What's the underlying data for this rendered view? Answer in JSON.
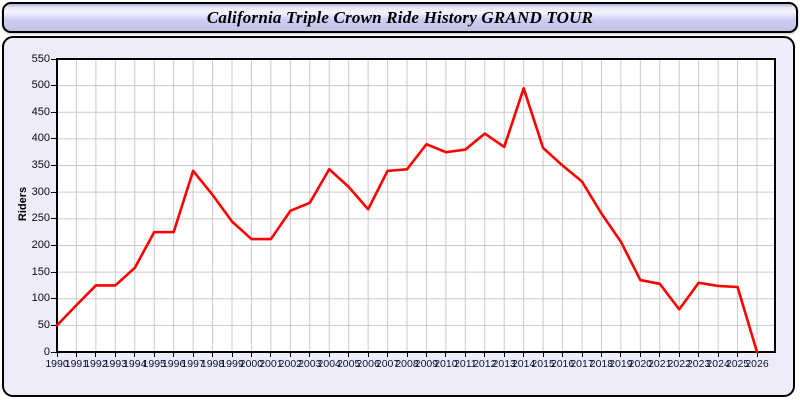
{
  "header": {
    "title": "California Triple Crown Ride History GRAND TOUR"
  },
  "chart_data": {
    "type": "line",
    "title": "California Triple Crown Ride History GRAND TOUR",
    "xlabel": "",
    "ylabel": "Riders",
    "x": [
      1990,
      1991,
      1992,
      1993,
      1994,
      1995,
      1996,
      1997,
      1998,
      1999,
      2000,
      2001,
      2002,
      2003,
      2004,
      2005,
      2006,
      2007,
      2008,
      2009,
      2010,
      2011,
      2012,
      2013,
      2014,
      2015,
      2016,
      2017,
      2018,
      2019,
      2020,
      2021,
      2022,
      2023,
      2024,
      2025,
      2026
    ],
    "series": [
      {
        "name": "Riders",
        "color": "#ff0000",
        "values": [
          50,
          88,
          125,
          125,
          158,
          225,
          225,
          340,
          295,
          245,
          212,
          212,
          265,
          280,
          343,
          310,
          268,
          340,
          343,
          390,
          375,
          380,
          410,
          385,
          495,
          383,
          350,
          320,
          260,
          207,
          135,
          128,
          80,
          130,
          124,
          122,
          0
        ]
      }
    ],
    "ylim": [
      0,
      550
    ],
    "ytick_step": 50,
    "yticks": [
      0,
      50,
      100,
      150,
      200,
      250,
      300,
      350,
      400,
      450,
      500,
      550
    ],
    "grid": "on",
    "legend": "none"
  },
  "colors": {
    "line": "#ff0000",
    "grid": "#c9c9c9",
    "frame": "#000000",
    "panel_bg": "#ececfb",
    "plot_bg": "#ffffff",
    "titlebar_gradient_top": "#b3b3d9",
    "titlebar_gradient_mid": "#f5f5fd",
    "titlebar_gradient_bottom": "#c2c2e0",
    "tick_label": "#10102a"
  }
}
